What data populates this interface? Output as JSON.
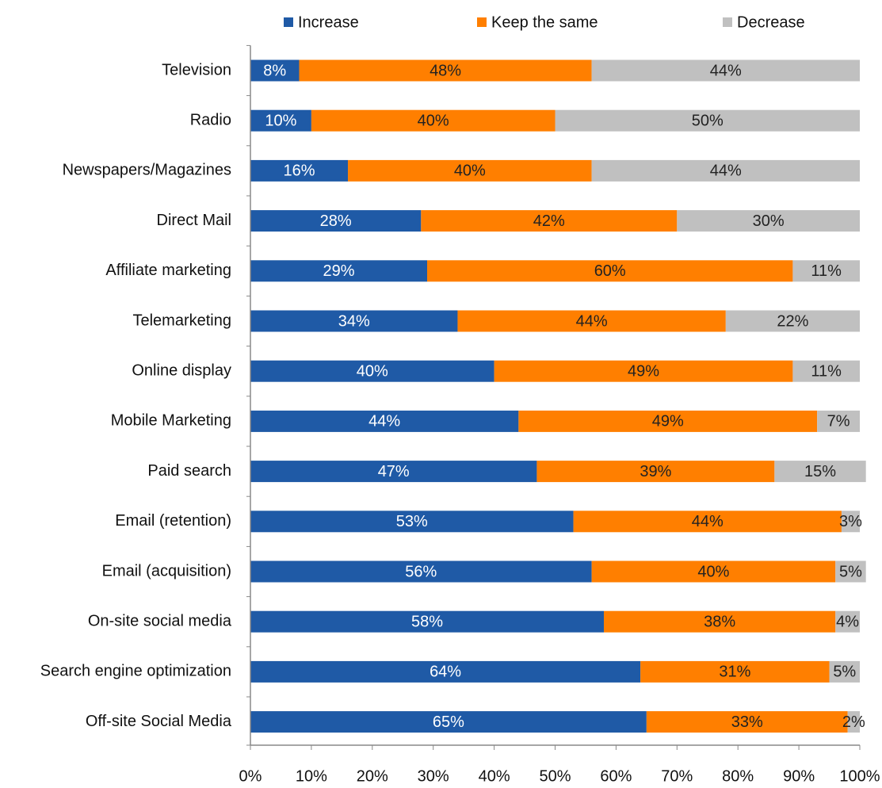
{
  "chart_data": {
    "type": "stacked_bar_horizontal",
    "categories": [
      "Television",
      "Radio",
      "Newspapers/Magazines",
      "Direct Mail",
      "Affiliate marketing",
      "Telemarketing",
      "Online display",
      "Mobile Marketing",
      "Paid search",
      "Email (retention)",
      "Email (acquisition)",
      "On-site social media",
      "Search engine optimization",
      "Off-site Social Media"
    ],
    "series": [
      {
        "name": "Increase",
        "color": "#1f5aa6",
        "values": [
          8,
          10,
          16,
          28,
          29,
          34,
          40,
          44,
          47,
          53,
          56,
          58,
          64,
          65
        ],
        "value_labels": [
          "8%",
          "10%",
          "16%",
          "28%",
          "29%",
          "34%",
          "40%",
          "44%",
          "47%",
          "53%",
          "56%",
          "58%",
          "64%",
          "65%"
        ]
      },
      {
        "name": "Keep the same",
        "color": "#ff7f00",
        "values": [
          48,
          40,
          40,
          42,
          60,
          44,
          49,
          49,
          39,
          44,
          40,
          38,
          31,
          33
        ],
        "value_labels": [
          "48%",
          "40%",
          "40%",
          "42%",
          "60%",
          "44%",
          "49%",
          "49%",
          "39%",
          "44%",
          "40%",
          "38%",
          "31%",
          "33%"
        ]
      },
      {
        "name": "Decrease",
        "color": "#c0c0c0",
        "values": [
          44,
          50,
          44,
          30,
          11,
          22,
          11,
          7,
          15,
          3,
          5,
          4,
          5,
          2
        ],
        "value_labels": [
          "44%",
          "50%",
          "44%",
          "30%",
          "11%",
          "22%",
          "11%",
          "7%",
          "15%",
          "3%",
          "5%",
          "4%",
          "5%",
          "2%"
        ]
      }
    ],
    "xlim": [
      0,
      100
    ],
    "xticks": [
      {
        "value": 0,
        "label": "0%"
      },
      {
        "value": 10,
        "label": "10%"
      },
      {
        "value": 20,
        "label": "20%"
      },
      {
        "value": 30,
        "label": "30%"
      },
      {
        "value": 40,
        "label": "40%"
      },
      {
        "value": 50,
        "label": "50%"
      },
      {
        "value": 60,
        "label": "60%"
      },
      {
        "value": 70,
        "label": "70%"
      },
      {
        "value": 80,
        "label": "80%"
      },
      {
        "value": 90,
        "label": "90%"
      },
      {
        "value": 100,
        "label": "100%"
      }
    ],
    "legend": "top"
  }
}
